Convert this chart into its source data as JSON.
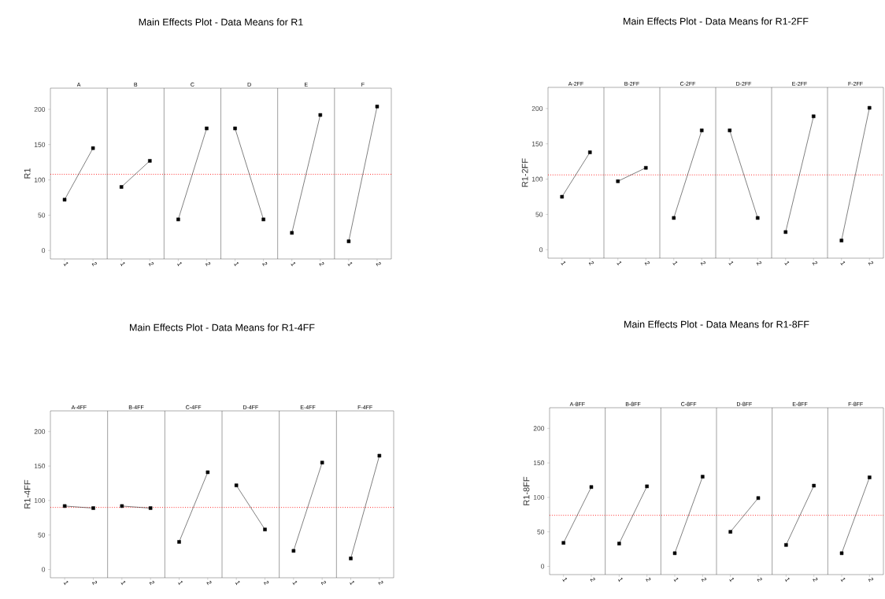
{
  "chart_data": [
    {
      "type": "line",
      "title": "Main Effects Plot - Data Means for R1",
      "ylabel": "R1",
      "annotations": [
        "A",
        "B",
        "C",
        "D",
        "E",
        "F"
      ],
      "categories": [
        "1",
        "2",
        "1",
        "2",
        "1",
        "2",
        "1",
        "2",
        "1",
        "2",
        "1",
        "2"
      ],
      "color": "#000000",
      "marker": "square",
      "ylim": [
        -12,
        230
      ],
      "yticks": [
        0,
        50,
        100,
        150,
        200
      ],
      "ref_lines": [
        {
          "axis": "y",
          "value": 108,
          "color": "#ff0000",
          "line_style": "dotted"
        }
      ],
      "series": [
        {
          "values": [
            72,
            145,
            null,
            null,
            null,
            null,
            null,
            null,
            null,
            null,
            null,
            null
          ]
        },
        {
          "values": [
            null,
            null,
            90,
            127,
            null,
            null,
            null,
            null,
            null,
            null,
            null,
            null
          ]
        },
        {
          "values": [
            null,
            null,
            null,
            null,
            44,
            173,
            null,
            null,
            null,
            null,
            null,
            null
          ]
        },
        {
          "values": [
            null,
            null,
            null,
            null,
            null,
            null,
            173,
            44,
            null,
            null,
            null,
            null
          ]
        },
        {
          "values": [
            null,
            null,
            null,
            null,
            null,
            null,
            null,
            null,
            25,
            192,
            null,
            null
          ]
        },
        {
          "values": [
            null,
            null,
            null,
            null,
            null,
            null,
            null,
            null,
            null,
            null,
            13,
            204
          ]
        }
      ]
    },
    {
      "type": "line",
      "title": "Main Effects Plot - Data Means for R1-2FF",
      "ylabel": "R1-2FF",
      "annotations": [
        "A-2FF",
        "B-2FF",
        "C-2FF",
        "D-2FF",
        "E-2FF",
        "F-2FF"
      ],
      "categories": [
        "1",
        "2",
        "1",
        "2",
        "1",
        "2",
        "1",
        "2",
        "1",
        "2",
        "1",
        "2"
      ],
      "color": "#000000",
      "marker": "square",
      "ylim": [
        -12,
        230
      ],
      "yticks": [
        0,
        50,
        100,
        150,
        200
      ],
      "ref_lines": [
        {
          "axis": "y",
          "value": 106,
          "color": "#ff0000",
          "line_style": "dotted"
        }
      ],
      "series": [
        {
          "values": [
            75,
            138,
            null,
            null,
            null,
            null,
            null,
            null,
            null,
            null,
            null,
            null
          ]
        },
        {
          "values": [
            null,
            null,
            97,
            116,
            null,
            null,
            null,
            null,
            null,
            null,
            null,
            null
          ]
        },
        {
          "values": [
            null,
            null,
            null,
            null,
            45,
            169,
            null,
            null,
            null,
            null,
            null,
            null
          ]
        },
        {
          "values": [
            null,
            null,
            null,
            null,
            null,
            null,
            169,
            45,
            null,
            null,
            null,
            null
          ]
        },
        {
          "values": [
            null,
            null,
            null,
            null,
            null,
            null,
            null,
            null,
            25,
            189,
            null,
            null
          ]
        },
        {
          "values": [
            null,
            null,
            null,
            null,
            null,
            null,
            null,
            null,
            null,
            null,
            13,
            201
          ]
        }
      ]
    },
    {
      "type": "line",
      "title": "Main Effects Plot - Data Means for R1-4FF",
      "ylabel": "R1-4FF",
      "annotations": [
        "A-4FF",
        "B-4FF",
        "C-4FF",
        "D-4FF",
        "E-4FF",
        "F-4FF"
      ],
      "categories": [
        "1",
        "2",
        "1",
        "2",
        "1",
        "2",
        "1",
        "2",
        "1",
        "2",
        "1",
        "2"
      ],
      "color": "#000000",
      "marker": "square",
      "ylim": [
        -12,
        230
      ],
      "yticks": [
        0,
        50,
        100,
        150,
        200
      ],
      "ref_lines": [
        {
          "axis": "y",
          "value": 90,
          "color": "#ff0000",
          "line_style": "dotted"
        }
      ],
      "series": [
        {
          "values": [
            92,
            89,
            null,
            null,
            null,
            null,
            null,
            null,
            null,
            null,
            null,
            null
          ]
        },
        {
          "values": [
            null,
            null,
            92,
            89,
            null,
            null,
            null,
            null,
            null,
            null,
            null,
            null
          ]
        },
        {
          "values": [
            null,
            null,
            null,
            null,
            40,
            141,
            null,
            null,
            null,
            null,
            null,
            null
          ]
        },
        {
          "values": [
            null,
            null,
            null,
            null,
            null,
            null,
            122,
            58,
            null,
            null,
            null,
            null
          ]
        },
        {
          "values": [
            null,
            null,
            null,
            null,
            null,
            null,
            null,
            null,
            27,
            155,
            null,
            null
          ]
        },
        {
          "values": [
            null,
            null,
            null,
            null,
            null,
            null,
            null,
            null,
            null,
            null,
            16,
            165
          ]
        }
      ]
    },
    {
      "type": "line",
      "title": "Main Effects Plot - Data Means for R1-8FF",
      "ylabel": "R1-8FF",
      "annotations": [
        "A-8FF",
        "B-8FF",
        "C-8FF",
        "D-8FF",
        "E-8FF",
        "F-8FF"
      ],
      "categories": [
        "1",
        "2",
        "1",
        "2",
        "1",
        "2",
        "1",
        "2",
        "1",
        "2",
        "1",
        "2"
      ],
      "color": "#000000",
      "marker": "square",
      "ylim": [
        -12,
        230
      ],
      "yticks": [
        0,
        50,
        100,
        150,
        200
      ],
      "ref_lines": [
        {
          "axis": "y",
          "value": 74,
          "color": "#ff0000",
          "line_style": "dotted"
        }
      ],
      "series": [
        {
          "values": [
            34,
            115,
            null,
            null,
            null,
            null,
            null,
            null,
            null,
            null,
            null,
            null
          ]
        },
        {
          "values": [
            null,
            null,
            33,
            116,
            null,
            null,
            null,
            null,
            null,
            null,
            null,
            null
          ]
        },
        {
          "values": [
            null,
            null,
            null,
            null,
            19,
            130,
            null,
            null,
            null,
            null,
            null,
            null
          ]
        },
        {
          "values": [
            null,
            null,
            null,
            null,
            null,
            null,
            50,
            99,
            null,
            null,
            null,
            null
          ]
        },
        {
          "values": [
            null,
            null,
            null,
            null,
            null,
            null,
            null,
            null,
            31,
            117,
            null,
            null
          ]
        },
        {
          "values": [
            null,
            null,
            null,
            null,
            null,
            null,
            null,
            null,
            null,
            null,
            19,
            129
          ]
        }
      ]
    }
  ]
}
